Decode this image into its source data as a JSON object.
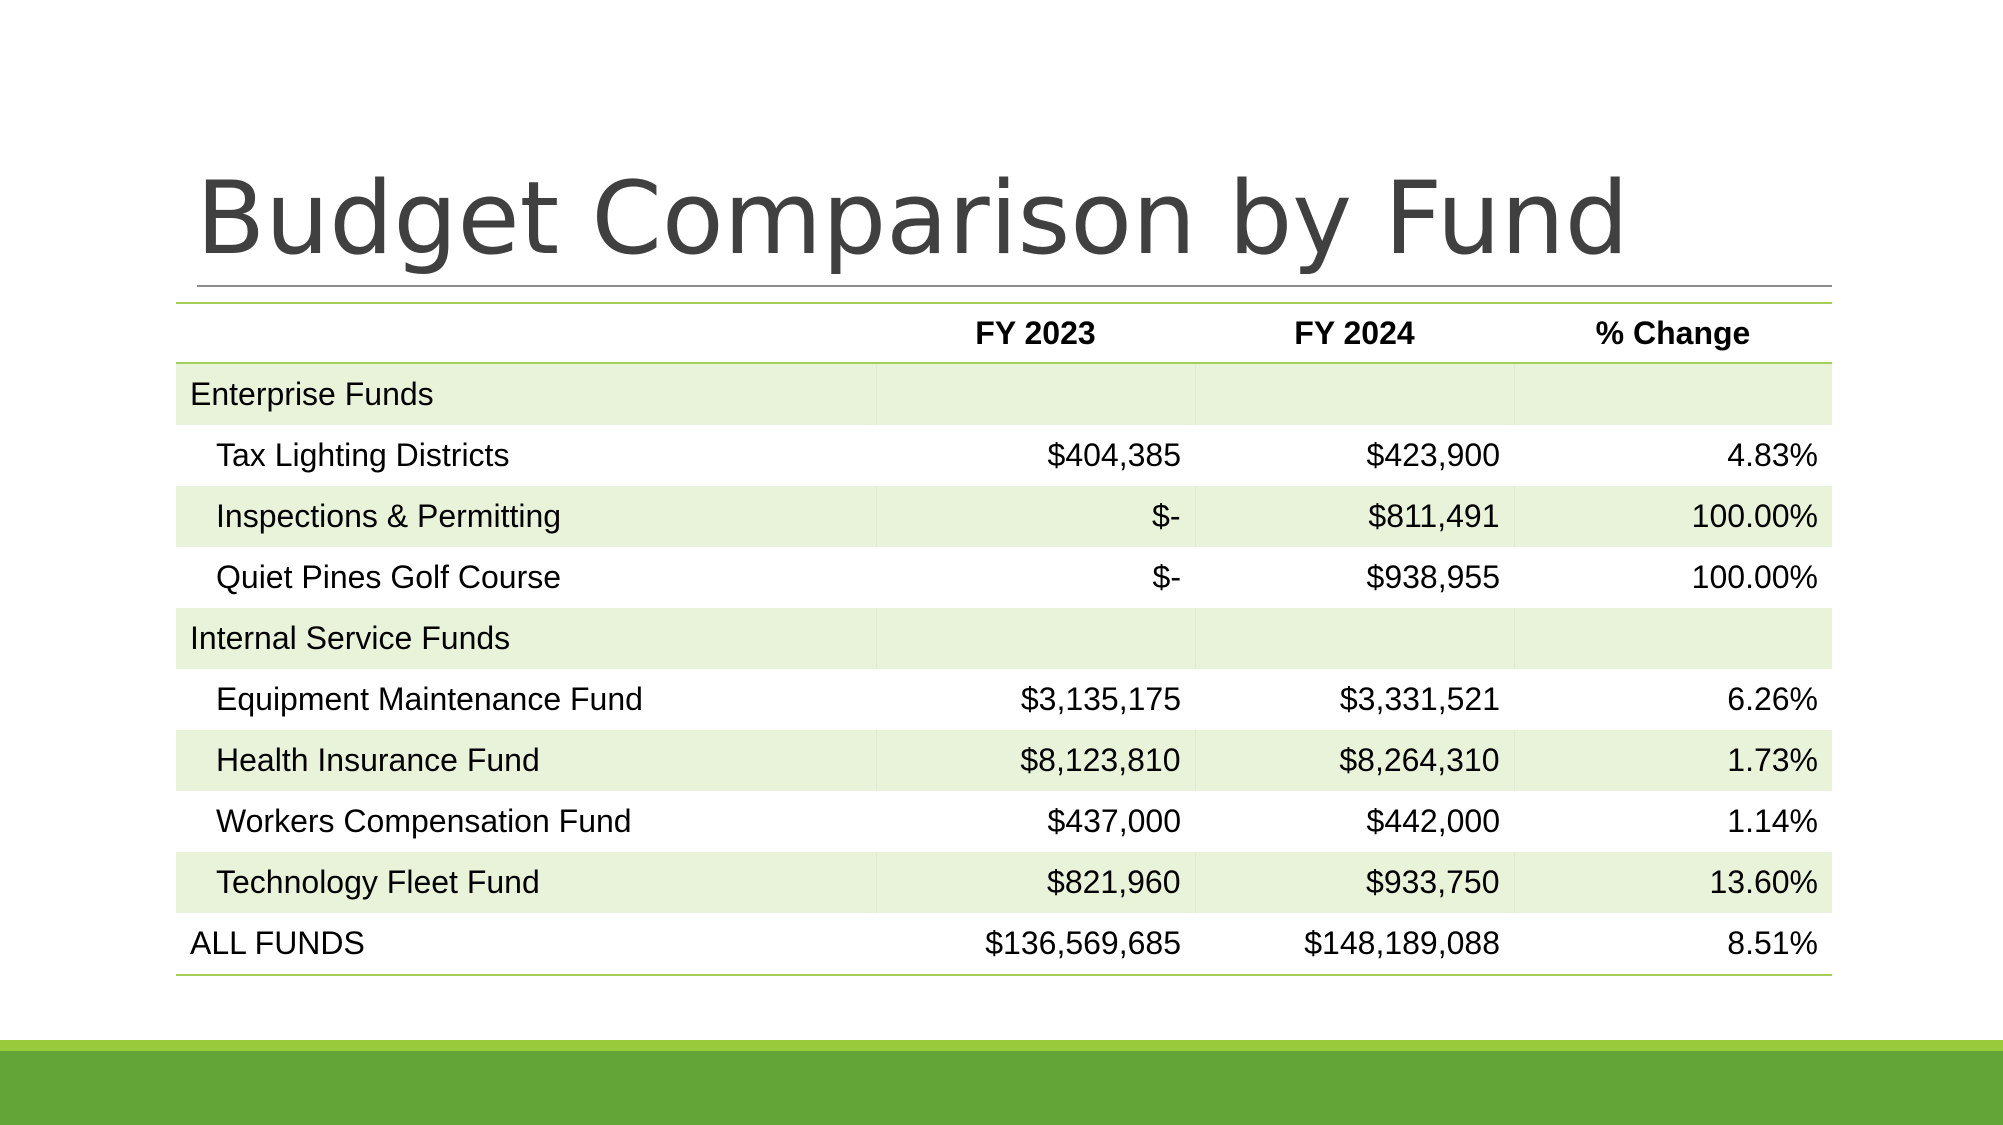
{
  "slide": {
    "title": "Budget Comparison by Fund",
    "colors": {
      "title_text": "#404040",
      "table_rule": "#a6cf5a",
      "row_band": "#e8f3d9",
      "footer_light": "#99ca3b",
      "footer_dark": "#63a537"
    }
  },
  "table": {
    "headers": [
      "",
      "FY 2023",
      "FY 2024",
      "% Change"
    ],
    "rows": [
      {
        "label": "Enterprise Funds",
        "fy2023": "",
        "fy2024": "",
        "change": "",
        "type": "group"
      },
      {
        "label": "Tax Lighting Districts",
        "fy2023": "$404,385",
        "fy2024": "$423,900",
        "change": "4.83%",
        "type": "item"
      },
      {
        "label": "Inspections & Permitting",
        "fy2023": "$-",
        "fy2024": "$811,491",
        "change": "100.00%",
        "type": "item"
      },
      {
        "label": "Quiet Pines Golf Course",
        "fy2023": "$-",
        "fy2024": "$938,955",
        "change": "100.00%",
        "type": "item"
      },
      {
        "label": "Internal Service Funds",
        "fy2023": "",
        "fy2024": "",
        "change": "",
        "type": "group"
      },
      {
        "label": "Equipment Maintenance Fund",
        "fy2023": "$3,135,175",
        "fy2024": "$3,331,521",
        "change": "6.26%",
        "type": "item"
      },
      {
        "label": "Health Insurance Fund",
        "fy2023": "$8,123,810",
        "fy2024": "$8,264,310",
        "change": "1.73%",
        "type": "item"
      },
      {
        "label": "Workers Compensation Fund",
        "fy2023": "$437,000",
        "fy2024": "$442,000",
        "change": "1.14%",
        "type": "item"
      },
      {
        "label": "Technology Fleet Fund",
        "fy2023": "$821,960",
        "fy2024": "$933,750",
        "change": "13.60%",
        "type": "item"
      },
      {
        "label": "ALL FUNDS",
        "fy2023": "$136,569,685",
        "fy2024": "$148,189,088",
        "change": "8.51%",
        "type": "total"
      }
    ]
  }
}
